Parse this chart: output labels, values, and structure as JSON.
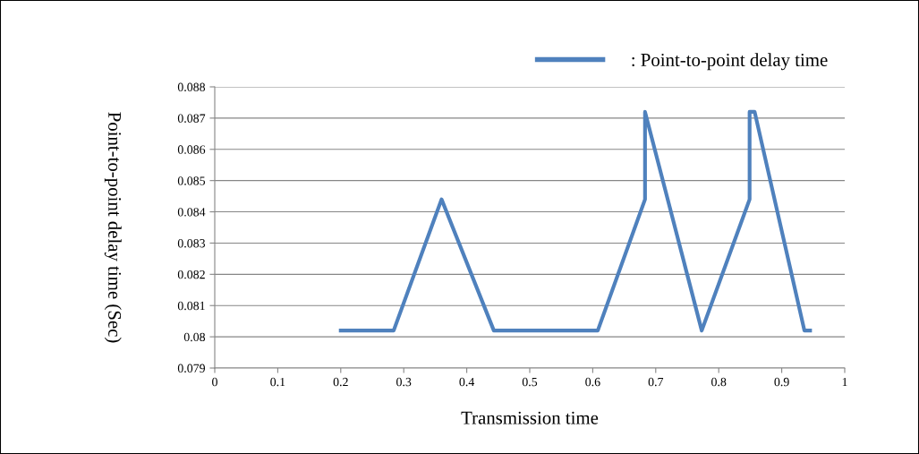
{
  "chart_data": {
    "type": "line",
    "xlabel": "Transmission time",
    "ylabel": "Point-to-point delay time (Sec)",
    "series": [
      {
        "name": ": Point-to-point delay time",
        "color": "#4f81bd",
        "x": [
          0.2,
          0.284,
          0.36,
          0.443,
          0.608,
          0.683,
          0.683,
          0.773,
          0.849,
          0.849,
          0.857,
          0.936,
          0.945
        ],
        "values": [
          0.0802,
          0.0802,
          0.0844,
          0.0802,
          0.0802,
          0.0844,
          0.0872,
          0.0802,
          0.0844,
          0.0872,
          0.0872,
          0.0802,
          0.0802
        ]
      }
    ],
    "xlim": [
      0,
      1
    ],
    "xticks": [
      0,
      0.1,
      0.2,
      0.3,
      0.4,
      0.5,
      0.6,
      0.7,
      0.8,
      0.9,
      1
    ],
    "ylim": [
      0.079,
      0.088
    ],
    "yticks": [
      0.079,
      0.08,
      0.081,
      0.082,
      0.083,
      0.084,
      0.085,
      0.086,
      0.087,
      0.088
    ],
    "grid": "y",
    "legend": "top right",
    "marker": "none",
    "line_style": "solid"
  }
}
